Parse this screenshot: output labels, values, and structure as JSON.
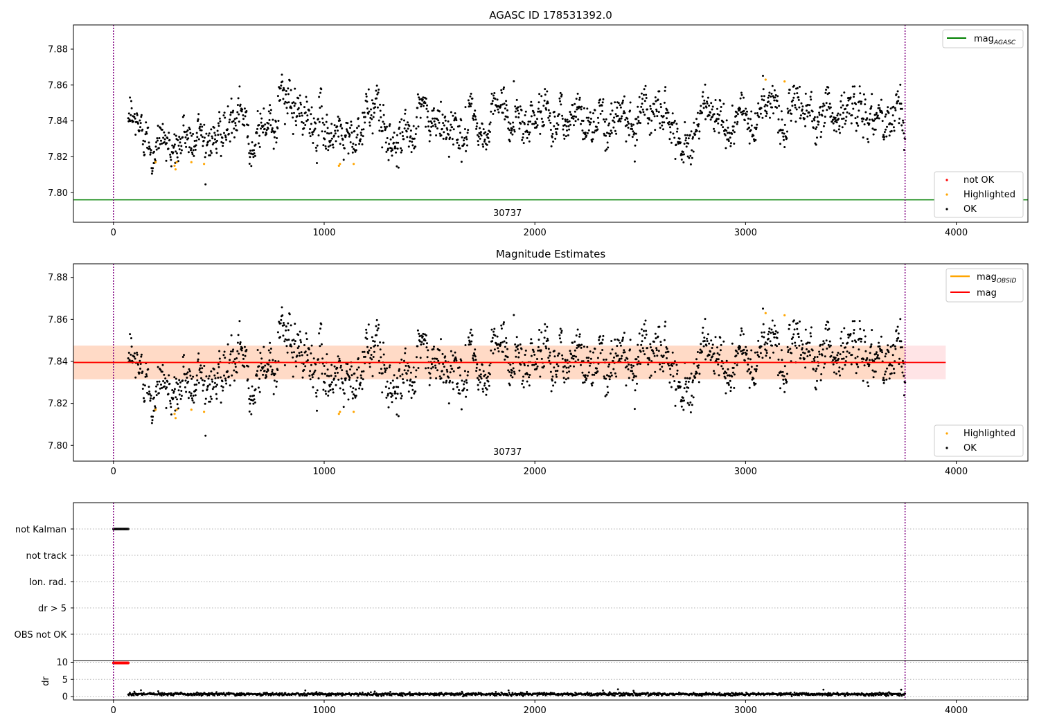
{
  "chart_data": [
    {
      "type": "scatter",
      "title": "AGASC ID 178531392.0",
      "xlabel": "",
      "ylabel": "",
      "xlim": [
        -190,
        4340
      ],
      "ylim": [
        7.7835,
        7.8935
      ],
      "xticks": [
        0,
        1000,
        2000,
        3000,
        4000
      ],
      "yticks": [
        7.8,
        7.82,
        7.84,
        7.86,
        7.88
      ],
      "grid": false,
      "obsid_label": "30737",
      "obsid_label_x": 1870,
      "obsid_boundaries": [
        0,
        3757
      ],
      "reference_lines": [
        {
          "name": "mag_AGASC",
          "legend_main": "mag",
          "legend_sub": "AGASC",
          "y": 7.796,
          "color": "#008000"
        }
      ],
      "legend_top": {
        "placement": "top-right",
        "entries": [
          "mag_AGASC"
        ]
      },
      "legend_bottom": {
        "placement": "bottom-right",
        "entries": [
          "not OK",
          "Highlighted",
          "OK"
        ]
      },
      "series": [
        {
          "name": "not OK",
          "color": "#ff0000",
          "values": []
        },
        {
          "name": "Highlighted",
          "color": "#ffa500",
          "points": [
            [
              200,
              7.817
            ],
            [
              290,
              7.815
            ],
            [
              295,
              7.813
            ],
            [
              300,
              7.817
            ],
            [
              370,
              7.817
            ],
            [
              430,
              7.816
            ],
            [
              1070,
              7.815
            ],
            [
              1075,
              7.816
            ],
            [
              1140,
              7.816
            ],
            [
              3095,
              7.863
            ],
            [
              3185,
              7.862
            ]
          ]
        },
        {
          "name": "OK",
          "color": "#000000",
          "x_range": [
            70,
            3757
          ],
          "n_points": 1800,
          "trend": [
            [
              70,
              7.837
            ],
            [
              200,
              7.832
            ],
            [
              290,
              7.825
            ],
            [
              400,
              7.834
            ],
            [
              550,
              7.835
            ],
            [
              700,
              7.837
            ],
            [
              800,
              7.85
            ],
            [
              900,
              7.838
            ],
            [
              1000,
              7.838
            ],
            [
              1100,
              7.834
            ],
            [
              1250,
              7.845
            ],
            [
              1300,
              7.829
            ],
            [
              1400,
              7.838
            ],
            [
              1600,
              7.836
            ],
            [
              1700,
              7.837
            ],
            [
              1770,
              7.828
            ],
            [
              1800,
              7.847
            ],
            [
              1900,
              7.842
            ],
            [
              2000,
              7.845
            ],
            [
              2200,
              7.842
            ],
            [
              2400,
              7.846
            ],
            [
              2600,
              7.846
            ],
            [
              2720,
              7.832
            ],
            [
              2800,
              7.844
            ],
            [
              2900,
              7.836
            ],
            [
              3100,
              7.846
            ],
            [
              3300,
              7.846
            ],
            [
              3500,
              7.844
            ],
            [
              3757,
              7.839
            ]
          ],
          "scatter_sd": 0.006
        }
      ]
    },
    {
      "type": "scatter",
      "title": "Magnitude Estimates",
      "xlabel": "",
      "ylabel": "",
      "xlim": [
        -190,
        4340
      ],
      "ylim": [
        7.7925,
        7.8865
      ],
      "xticks": [
        0,
        1000,
        2000,
        3000,
        4000
      ],
      "yticks": [
        7.8,
        7.82,
        7.84,
        7.86,
        7.88
      ],
      "grid": false,
      "obsid_label": "30737",
      "obsid_label_x": 1870,
      "obsid_boundaries": [
        0,
        3757
      ],
      "band": {
        "x": [
          -190,
          3950
        ],
        "y": [
          7.8315,
          7.8475
        ],
        "color_in_obsid": "#ffdac6",
        "color_outside": "#ffe4e6"
      },
      "reference_lines": [
        {
          "name": "mag_OBSID",
          "legend_main": "mag",
          "legend_sub": "OBSID",
          "y": 7.8395,
          "color": "#ffa500",
          "x": [
            -190,
            3757
          ]
        },
        {
          "name": "mag",
          "legend_main": "mag",
          "legend_sub": "",
          "y": 7.8395,
          "color": "#ff0000",
          "x": [
            -190,
            3950
          ]
        }
      ],
      "legend_top": {
        "placement": "top-right",
        "entries": [
          "mag_OBSID",
          "mag"
        ]
      },
      "legend_bottom": {
        "placement": "bottom-right",
        "entries": [
          "Highlighted",
          "OK"
        ]
      },
      "series": [
        {
          "name": "Highlighted",
          "color": "#ffa500",
          "same_as_panel": 0
        },
        {
          "name": "OK",
          "color": "#000000",
          "same_as_panel": 0
        }
      ]
    },
    {
      "type": "scatter",
      "title": "",
      "xlabel": "",
      "ylabel": "",
      "xlim": [
        -190,
        4340
      ],
      "categories": [
        "not Kalman",
        "not track",
        "Ion. rad.",
        "dr > 5",
        "OBS not OK"
      ],
      "grid": true,
      "obsid_boundaries": [
        0,
        3757
      ],
      "series": [
        {
          "name": "not Kalman",
          "color": "#000000",
          "x_range": [
            0,
            70
          ],
          "n_points": 24
        }
      ]
    },
    {
      "type": "scatter",
      "title": "",
      "xlabel": "",
      "ylabel": "dr",
      "xlim": [
        -190,
        4340
      ],
      "ylim": [
        -1,
        10.5
      ],
      "xticks": [
        0,
        1000,
        2000,
        3000,
        4000
      ],
      "yticks": [
        0,
        5,
        10
      ],
      "grid": true,
      "obsid_boundaries": [
        0,
        3757
      ],
      "series": [
        {
          "name": "dr (not Kalman)",
          "color": "#ff0000",
          "x_range": [
            0,
            70
          ],
          "y": 9.8,
          "n_points": 24
        },
        {
          "name": "dr",
          "color": "#000000",
          "x_range": [
            70,
            3757
          ],
          "mean": 0.7,
          "spread": 0.35,
          "n_points": 1400
        }
      ]
    }
  ]
}
